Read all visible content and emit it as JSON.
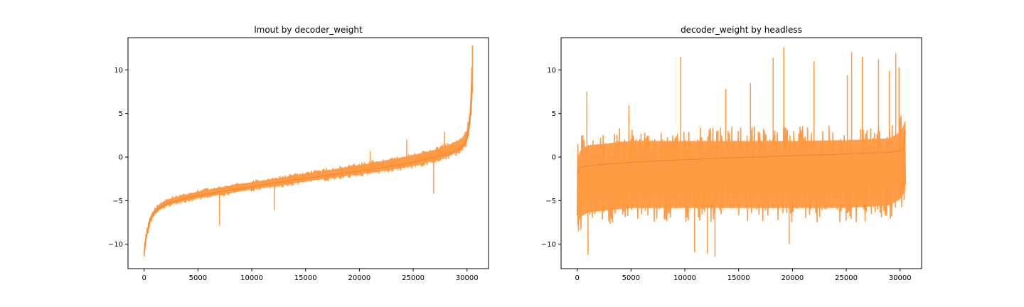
{
  "figure": {
    "background": "#ffffff",
    "line_color": "#ff9a42",
    "trend_color": "#e8863a",
    "axes_color": "#000000"
  },
  "chart_data": [
    {
      "type": "line",
      "title": "lmout by decoder_weight",
      "xlabel": "",
      "ylabel": "",
      "xlim": [
        -1500,
        32000
      ],
      "ylim": [
        -12.8,
        13.7
      ],
      "xticks": [
        0,
        5000,
        10000,
        15000,
        20000,
        25000,
        30000
      ],
      "xtick_labels": [
        "0",
        "5000",
        "10000",
        "15000",
        "20000",
        "25000",
        "30000"
      ],
      "yticks": [
        -10,
        -5,
        0,
        5,
        10
      ],
      "ytick_labels": [
        "−10",
        "−5",
        "0",
        "5",
        "10"
      ],
      "grid": false,
      "series": [
        {
          "kind": "noisy-envelope",
          "color": "#ff9a42",
          "x": [
            0,
            200,
            600,
            1200,
            2000,
            3000,
            5000,
            7500,
            10000,
            12500,
            15000,
            17500,
            20000,
            22500,
            25000,
            27000,
            28500,
            29500,
            30000,
            30300,
            30500
          ],
          "center": [
            -11.0,
            -9.0,
            -7.0,
            -6.0,
            -5.4,
            -5.0,
            -4.4,
            -3.9,
            -3.4,
            -2.9,
            -2.45,
            -2.0,
            -1.6,
            -1.15,
            -0.6,
            0.0,
            0.5,
            1.1,
            2.0,
            4.0,
            9.0
          ],
          "low": [
            -11.8,
            -9.6,
            -7.5,
            -6.4,
            -5.8,
            -5.4,
            -4.9,
            -4.4,
            -3.9,
            -3.5,
            -3.0,
            -2.6,
            -2.2,
            -1.8,
            -1.3,
            -0.7,
            -0.1,
            0.5,
            1.4,
            3.2,
            5.5
          ],
          "high": [
            -10.2,
            -8.5,
            -6.5,
            -5.5,
            -4.8,
            -4.4,
            -3.8,
            -3.2,
            -2.7,
            -2.2,
            -1.7,
            -1.2,
            -0.7,
            -0.1,
            0.5,
            1.1,
            1.8,
            2.4,
            3.4,
            6.0,
            12.7
          ],
          "spikes": [
            {
              "x": 7000,
              "y": -7.8
            },
            {
              "x": 12100,
              "y": -6.1
            },
            {
              "x": 18200,
              "y": -1.0
            },
            {
              "x": 21000,
              "y": 0.7
            },
            {
              "x": 24400,
              "y": 2.0
            },
            {
              "x": 26900,
              "y": -4.2
            },
            {
              "x": 27900,
              "y": 2.9
            },
            {
              "x": 30500,
              "y": 12.8
            }
          ]
        }
      ]
    },
    {
      "type": "line",
      "title": "decoder_weight by headless",
      "xlabel": "",
      "ylabel": "",
      "xlim": [
        -1500,
        32000
      ],
      "ylim": [
        -12.8,
        13.7
      ],
      "xticks": [
        0,
        5000,
        10000,
        15000,
        20000,
        25000,
        30000
      ],
      "xtick_labels": [
        "0",
        "5000",
        "10000",
        "15000",
        "20000",
        "25000",
        "30000"
      ],
      "yticks": [
        -10,
        -5,
        0,
        5,
        10
      ],
      "ytick_labels": [
        "−10",
        "−5",
        "0",
        "5",
        "10"
      ],
      "grid": false,
      "series": [
        {
          "kind": "noisy-envelope",
          "color": "#ff9a42",
          "x": [
            0,
            300,
            1000,
            5000,
            10000,
            15000,
            20000,
            25000,
            29000,
            30000,
            30400,
            30500
          ],
          "center": [
            -1.9,
            -1.2,
            -1.0,
            -0.6,
            -0.3,
            -0.05,
            0.15,
            0.35,
            0.55,
            0.7,
            1.0,
            3.0
          ],
          "low": [
            -9.5,
            -8.5,
            -8.0,
            -7.5,
            -7.5,
            -7.5,
            -7.5,
            -7.5,
            -7.2,
            -6.5,
            -5.8,
            -5.5
          ],
          "high": [
            1.2,
            2.5,
            3.0,
            3.5,
            3.5,
            3.5,
            3.5,
            3.6,
            3.8,
            4.5,
            5.5,
            6.0
          ],
          "spikes": [
            {
              "x": 900,
              "y": 7.5
            },
            {
              "x": 1000,
              "y": -11.2
            },
            {
              "x": 4800,
              "y": 5.9
            },
            {
              "x": 9600,
              "y": 11.5
            },
            {
              "x": 10900,
              "y": -10.9
            },
            {
              "x": 12100,
              "y": -11.1
            },
            {
              "x": 12800,
              "y": -11.4
            },
            {
              "x": 13800,
              "y": 7.8
            },
            {
              "x": 16100,
              "y": 8.5
            },
            {
              "x": 18200,
              "y": 11.4
            },
            {
              "x": 19200,
              "y": 12.6
            },
            {
              "x": 19700,
              "y": -10.0
            },
            {
              "x": 22000,
              "y": 11.0
            },
            {
              "x": 25100,
              "y": 9.4
            },
            {
              "x": 25500,
              "y": 12.0
            },
            {
              "x": 26500,
              "y": 11.5
            },
            {
              "x": 28000,
              "y": 11.2
            },
            {
              "x": 29000,
              "y": 9.9
            },
            {
              "x": 29600,
              "y": 11.9
            },
            {
              "x": 29900,
              "y": 10.3
            }
          ]
        }
      ]
    }
  ]
}
